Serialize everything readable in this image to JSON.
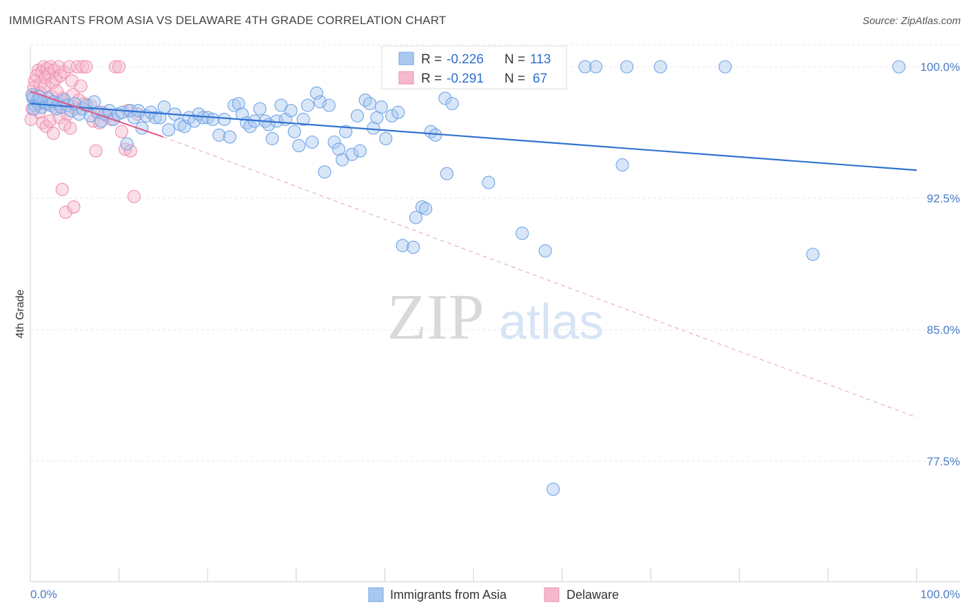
{
  "header": {
    "title": "IMMIGRANTS FROM ASIA VS DELAWARE 4TH GRADE CORRELATION CHART",
    "source": "Source: ZipAtlas.com"
  },
  "watermark": {
    "zip": "ZIP",
    "atlas": "atlas"
  },
  "stats": {
    "r_label": "R =",
    "n_label": "N =",
    "rows": [
      {
        "r": "-0.226",
        "n": "113",
        "color": "#a9c8f0"
      },
      {
        "r": "-0.291",
        "n": "67",
        "color": "#f5b8cc"
      }
    ]
  },
  "chart_data": {
    "type": "scatter",
    "title": "IMMIGRANTS FROM ASIA VS DELAWARE 4TH GRADE CORRELATION CHART",
    "xlabel": "",
    "ylabel": "4th Grade",
    "xlim": [
      0,
      100
    ],
    "ylim": [
      70,
      101.5
    ],
    "x_tick_labels": [
      "0.0%",
      "100.0%"
    ],
    "y_ticks": [
      77.5,
      85.0,
      92.5,
      100.0
    ],
    "y_tick_labels": [
      "77.5%",
      "85.0%",
      "92.5%",
      "100.0%"
    ],
    "grid": true,
    "legend_position": "bottom-center",
    "series": [
      {
        "name": "Immigrants from Asia",
        "color": "#6fa3e6",
        "line_color": "#2f72cf",
        "trend": {
          "x": [
            0,
            100
          ],
          "y": [
            97.9,
            94.1
          ],
          "style": "solid"
        },
        "points": [
          [
            0.3,
            98.2
          ],
          [
            0.5,
            97.8
          ],
          [
            0.7,
            98.0
          ],
          [
            0.9,
            97.9
          ],
          [
            1.1,
            98.1
          ],
          [
            1.3,
            97.7
          ],
          [
            1.5,
            98.0
          ],
          [
            1.8,
            97.9
          ],
          [
            2.0,
            98.2
          ],
          [
            2.3,
            97.8
          ],
          [
            2.6,
            98.0
          ],
          [
            2.9,
            97.6
          ],
          [
            3.2,
            97.9
          ],
          [
            3.5,
            97.7
          ],
          [
            3.8,
            98.1
          ],
          [
            4.2,
            97.8
          ],
          [
            4.6,
            97.5
          ],
          [
            5.0,
            97.9
          ],
          [
            5.5,
            97.3
          ],
          [
            5.9,
            97.6
          ],
          [
            6.3,
            97.8
          ],
          [
            6.8,
            97.2
          ],
          [
            7.2,
            98.0
          ],
          [
            7.6,
            97.4
          ],
          [
            8.0,
            96.9
          ],
          [
            8.4,
            97.3
          ],
          [
            8.9,
            97.5
          ],
          [
            9.4,
            97.0
          ],
          [
            9.9,
            97.3
          ],
          [
            10.4,
            97.4
          ],
          [
            10.9,
            95.6
          ],
          [
            11.3,
            97.5
          ],
          [
            11.7,
            97.1
          ],
          [
            12.2,
            97.5
          ],
          [
            12.6,
            96.5
          ],
          [
            13.1,
            97.2
          ],
          [
            13.6,
            97.4
          ],
          [
            14.1,
            97.1
          ],
          [
            14.6,
            97.1
          ],
          [
            15.1,
            97.7
          ],
          [
            15.6,
            96.4
          ],
          [
            16.3,
            97.3
          ],
          [
            16.9,
            96.7
          ],
          [
            17.4,
            96.6
          ],
          [
            17.9,
            97.1
          ],
          [
            18.5,
            96.9
          ],
          [
            19.0,
            97.3
          ],
          [
            19.5,
            97.1
          ],
          [
            20.0,
            97.1
          ],
          [
            20.6,
            97.0
          ],
          [
            21.3,
            96.1
          ],
          [
            21.9,
            97.0
          ],
          [
            22.5,
            96.0
          ],
          [
            23.0,
            97.8
          ],
          [
            23.5,
            97.9
          ],
          [
            23.9,
            97.3
          ],
          [
            24.4,
            96.8
          ],
          [
            24.8,
            96.6
          ],
          [
            25.3,
            96.9
          ],
          [
            25.9,
            97.6
          ],
          [
            26.5,
            96.9
          ],
          [
            26.9,
            96.7
          ],
          [
            27.3,
            95.9
          ],
          [
            27.8,
            96.9
          ],
          [
            28.3,
            97.8
          ],
          [
            28.8,
            97.0
          ],
          [
            29.4,
            97.5
          ],
          [
            29.8,
            96.3
          ],
          [
            30.3,
            95.5
          ],
          [
            30.8,
            97.0
          ],
          [
            31.3,
            97.8
          ],
          [
            31.8,
            95.7
          ],
          [
            32.3,
            98.5
          ],
          [
            32.7,
            98.0
          ],
          [
            33.2,
            94.0
          ],
          [
            33.7,
            97.8
          ],
          [
            34.3,
            95.7
          ],
          [
            34.8,
            95.3
          ],
          [
            35.2,
            94.7
          ],
          [
            35.6,
            96.3
          ],
          [
            36.3,
            95.0
          ],
          [
            36.9,
            97.2
          ],
          [
            37.2,
            95.2
          ],
          [
            37.8,
            98.1
          ],
          [
            38.3,
            97.9
          ],
          [
            38.7,
            96.5
          ],
          [
            39.1,
            97.1
          ],
          [
            39.6,
            97.7
          ],
          [
            40.1,
            95.9
          ],
          [
            40.8,
            97.2
          ],
          [
            41.5,
            97.4
          ],
          [
            42.0,
            89.8
          ],
          [
            42.6,
            99.1
          ],
          [
            43.2,
            89.7
          ],
          [
            43.5,
            91.4
          ],
          [
            44.2,
            92.0
          ],
          [
            44.6,
            91.9
          ],
          [
            45.2,
            96.3
          ],
          [
            45.7,
            96.1
          ],
          [
            46.8,
            98.2
          ],
          [
            47.0,
            93.9
          ],
          [
            47.6,
            97.9
          ],
          [
            51.7,
            93.4
          ],
          [
            52.5,
            100.0
          ],
          [
            53.4,
            100.0
          ],
          [
            55.5,
            90.5
          ],
          [
            58.1,
            89.5
          ],
          [
            59.0,
            75.9
          ],
          [
            62.6,
            100.0
          ],
          [
            63.8,
            100.0
          ],
          [
            66.8,
            94.4
          ],
          [
            67.3,
            100.0
          ],
          [
            71.1,
            100.0
          ],
          [
            78.4,
            100.0
          ],
          [
            88.3,
            89.3
          ],
          [
            98.0,
            100.0
          ],
          [
            0.2,
            98.4
          ],
          [
            0.4,
            97.6
          ],
          [
            1.0,
            98.3
          ]
        ]
      },
      {
        "name": "Delaware",
        "color": "#f08fb0",
        "line_color": "#e05a8a",
        "trend": {
          "x": [
            0,
            15,
            100
          ],
          "y": [
            98.6,
            96.0,
            80.0
          ],
          "style": "solid-then-dashed"
        },
        "points": [
          [
            0.1,
            97.0
          ],
          [
            0.2,
            97.6
          ],
          [
            0.3,
            98.3
          ],
          [
            0.4,
            98.8
          ],
          [
            0.5,
            99.2
          ],
          [
            0.6,
            97.8
          ],
          [
            0.7,
            99.5
          ],
          [
            0.8,
            98.1
          ],
          [
            0.9,
            99.8
          ],
          [
            1.0,
            97.4
          ],
          [
            1.1,
            99.0
          ],
          [
            1.2,
            98.5
          ],
          [
            1.3,
            99.7
          ],
          [
            1.4,
            96.8
          ],
          [
            1.5,
            100.0
          ],
          [
            1.6,
            98.9
          ],
          [
            1.7,
            99.4
          ],
          [
            1.8,
            96.6
          ],
          [
            1.9,
            99.9
          ],
          [
            2.0,
            97.9
          ],
          [
            2.1,
            99.6
          ],
          [
            2.2,
            96.9
          ],
          [
            2.3,
            100.0
          ],
          [
            2.4,
            98.3
          ],
          [
            2.5,
            99.1
          ],
          [
            2.6,
            96.2
          ],
          [
            2.7,
            99.8
          ],
          [
            2.8,
            97.7
          ],
          [
            2.9,
            99.3
          ],
          [
            3.0,
            98.6
          ],
          [
            3.2,
            100.0
          ],
          [
            3.3,
            97.1
          ],
          [
            3.4,
            99.5
          ],
          [
            3.5,
            98.0
          ],
          [
            3.6,
            93.0
          ],
          [
            3.7,
            98.2
          ],
          [
            3.8,
            99.7
          ],
          [
            3.9,
            96.7
          ],
          [
            4.0,
            91.7
          ],
          [
            4.2,
            97.3
          ],
          [
            4.4,
            100.0
          ],
          [
            4.5,
            96.5
          ],
          [
            4.7,
            99.2
          ],
          [
            4.8,
            98.4
          ],
          [
            4.9,
            92.0
          ],
          [
            5.1,
            97.6
          ],
          [
            5.3,
            100.0
          ],
          [
            5.5,
            98.1
          ],
          [
            5.7,
            98.9
          ],
          [
            5.9,
            100.0
          ],
          [
            6.1,
            97.9
          ],
          [
            6.3,
            100.0
          ],
          [
            6.8,
            97.8
          ],
          [
            7.1,
            96.9
          ],
          [
            7.4,
            95.2
          ],
          [
            7.8,
            96.8
          ],
          [
            8.1,
            97.4
          ],
          [
            8.6,
            97.2
          ],
          [
            9.1,
            97.0
          ],
          [
            9.6,
            100.0
          ],
          [
            10.0,
            100.0
          ],
          [
            10.3,
            96.3
          ],
          [
            10.7,
            95.3
          ],
          [
            11.0,
            97.5
          ],
          [
            11.3,
            95.2
          ],
          [
            11.7,
            92.6
          ],
          [
            12.1,
            97.3
          ]
        ]
      }
    ]
  }
}
